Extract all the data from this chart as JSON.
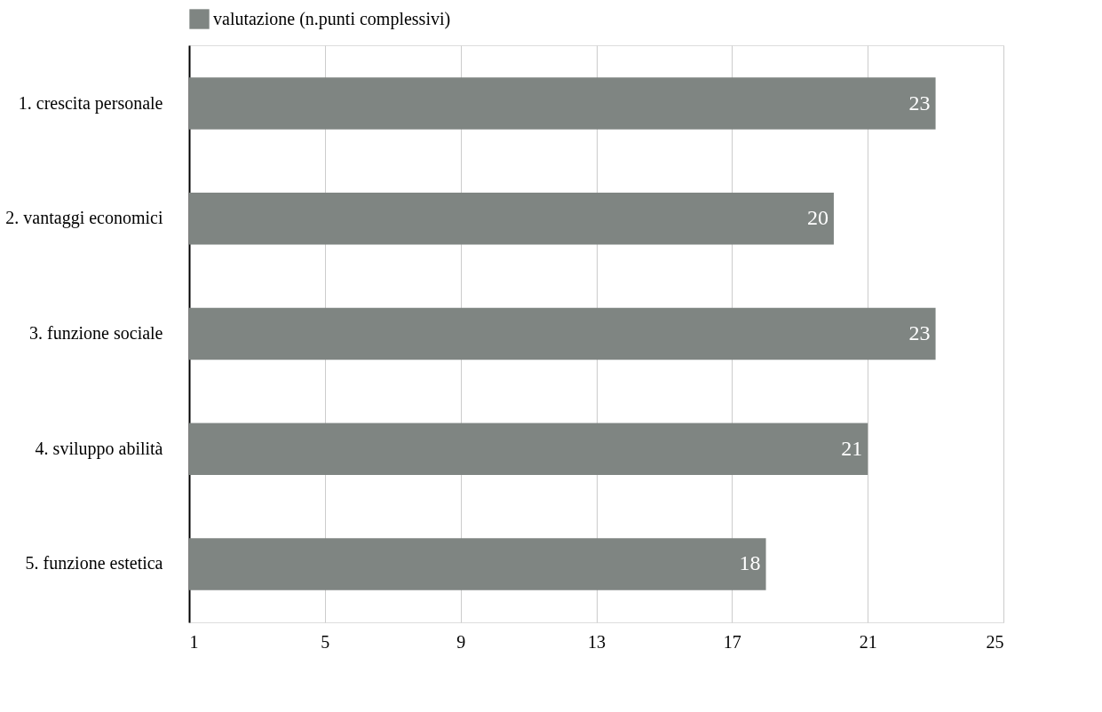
{
  "chart_data": {
    "type": "bar",
    "orientation": "horizontal",
    "categories": [
      "1. crescita personale",
      "2. vantaggi economici",
      "3. funzione sociale",
      "4. sviluppo abilità",
      "5. funzione estetica"
    ],
    "series": [
      {
        "name": "valutazione (n.punti complessivi)",
        "color": "#7f8582",
        "values": [
          23,
          20,
          23,
          21,
          18
        ]
      }
    ],
    "xlim": [
      1,
      25
    ],
    "xticks": [
      1,
      5,
      9,
      13,
      17,
      21,
      25
    ],
    "grid": "x",
    "legend": "top",
    "data_labels": true
  }
}
